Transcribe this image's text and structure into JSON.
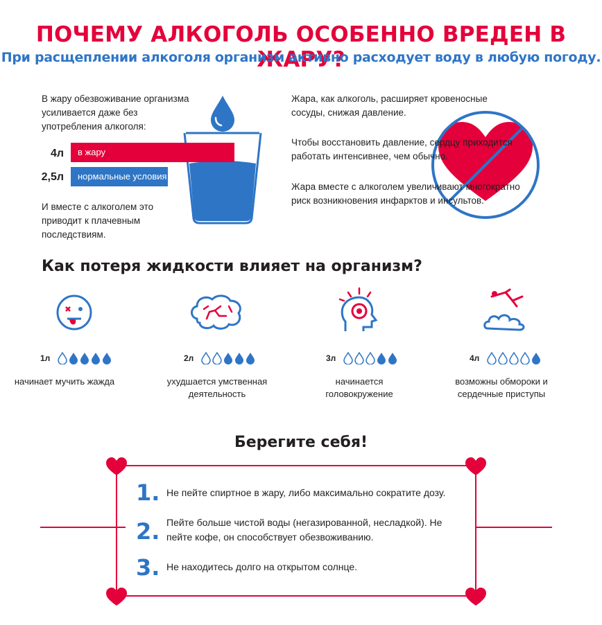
{
  "title": "ПОЧЕМУ АЛКОГОЛЬ ОСОБЕННО ВРЕДЕН В ЖАРУ?",
  "subtitle": "При расщеплении алкоголя организм активно расходует воду в любую погоду.",
  "colors": {
    "red": "#e4003a",
    "blue": "#2e75c6",
    "dark": "#231f20"
  },
  "left_block": {
    "intro": "В жару обезвоживание организма усиливается даже без употребления алкоголя:",
    "bars": [
      {
        "amount": "4л",
        "label": "в жару",
        "color": "#e4003a"
      },
      {
        "amount": "2,5л",
        "label": "нормальные условия",
        "color": "#2e75c6"
      }
    ],
    "outro": "И вместе с алкоголем это приводит к плачевным последствиям.",
    "icon": "water-glass-icon"
  },
  "right_block": {
    "p1": "Жара, как алкоголь, расширяет кровеносные сосуды, снижая давление.",
    "p2": "Чтобы восстановить давление, сердцу приходится работать интенсивнее, чем обычно.",
    "p3": "Жара вместе с алкоголем увеличивают многократно риск возникновения инфарктов и инсультов.",
    "icon": "crossed-heart-icon"
  },
  "section2": {
    "heading": "Как потеря жидкости влияет на организм?",
    "stages": [
      {
        "amount": "1л",
        "drops_filled": 4,
        "caption": "начинает мучить жажда",
        "icon": "dizzy-face-icon"
      },
      {
        "amount": "2л",
        "drops_filled": 3,
        "caption": "ухудшается умственная деятельность",
        "icon": "brain-icon"
      },
      {
        "amount": "3л",
        "drops_filled": 2,
        "caption": "начинается головокружение",
        "icon": "head-target-icon"
      },
      {
        "amount": "4л",
        "drops_filled": 1,
        "caption": "возможны обмороки и сердечные приступы",
        "icon": "fainting-person-icon"
      }
    ]
  },
  "section3": {
    "heading": "Берегите себя!",
    "tips": [
      {
        "num": "1.",
        "text": "Не пейте спиртное в жару, либо максимально сократите дозу."
      },
      {
        "num": "2.",
        "text": "Пейте больше чистой воды (негазированной, несладкой). Не пейте кофе, он способствует обезвоживанию."
      },
      {
        "num": "3.",
        "text": "Не находитесь долго на открытом солнце."
      }
    ]
  }
}
